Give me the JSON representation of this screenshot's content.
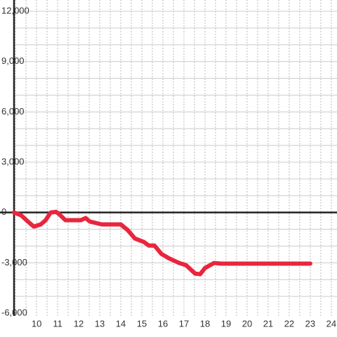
{
  "chart_data": {
    "type": "line",
    "x": [
      8.93,
      9.27,
      9.67,
      9.87,
      10.2,
      10.43,
      10.67,
      10.93,
      11.1,
      11.37,
      12.1,
      12.33,
      12.53,
      13.1,
      14.0,
      14.33,
      14.67,
      15.1,
      15.33,
      15.6,
      15.93,
      16.27,
      16.77,
      17.1,
      17.53,
      17.77,
      18.0,
      18.43,
      18.77,
      23.0
    ],
    "series": [
      {
        "color": "#e8263e",
        "values": [
          0,
          -170,
          -630,
          -840,
          -710,
          -460,
          0,
          40,
          -130,
          -460,
          -460,
          -330,
          -540,
          -710,
          -710,
          -1050,
          -1550,
          -1760,
          -1970,
          -1970,
          -2470,
          -2720,
          -3010,
          -3140,
          -3640,
          -3680,
          -3310,
          -3010,
          -3050,
          -3050
        ]
      }
    ],
    "xlim": [
      8.93,
      24.27
    ],
    "xticks": [
      10,
      11,
      12,
      13,
      14,
      15,
      16,
      17,
      18,
      19,
      20,
      21,
      22,
      23,
      24
    ],
    "xgrid": [
      9,
      9.5,
      10,
      10.5,
      11,
      11.5,
      12,
      12.5,
      13,
      13.5,
      14,
      14.5,
      15,
      15.5,
      16,
      16.5,
      17,
      17.5,
      18,
      18.5,
      19,
      19.5,
      20,
      20.5,
      21,
      21.5,
      22,
      22.5,
      23,
      23.5,
      24
    ],
    "ylim": [
      -6000,
      12000
    ],
    "yticks": [
      {
        "value": 12000,
        "label": "12,000"
      },
      {
        "value": 9000,
        "label": "9,000"
      },
      {
        "value": 6000,
        "label": "6,000"
      },
      {
        "value": 3000,
        "label": "3,000"
      },
      0,
      {
        "value": -3000,
        "label": "-3,000"
      },
      {
        "value": -6000,
        "label": "-6,000"
      }
    ],
    "ygrid": [
      -5000,
      -4000,
      -3000,
      -2000,
      -1000,
      1000,
      2000,
      3000,
      4000,
      5000,
      6000,
      7000,
      8000,
      9000,
      10000,
      11000,
      12000
    ],
    "grid": true
  }
}
